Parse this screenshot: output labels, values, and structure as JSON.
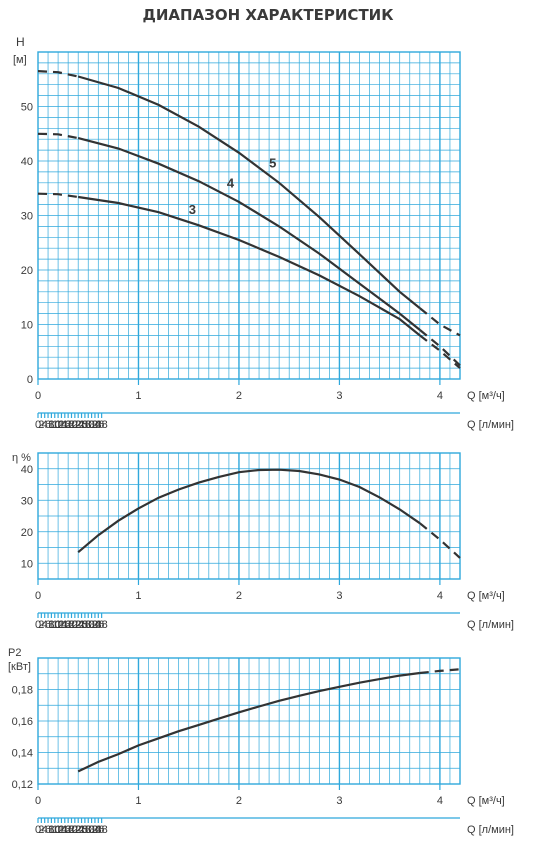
{
  "title": "ДИАПАЗОН ХАРАКТЕРИСТИК",
  "colors": {
    "grid": "#2fa8dc",
    "curve": "#333333",
    "text": "#3a3a3a"
  },
  "chart_data": [
    {
      "type": "line",
      "ylabel": "H",
      "yunit": "[м]",
      "ylim": [
        0,
        60
      ],
      "yticks": [
        "0",
        "10",
        "20",
        "30",
        "40",
        "50"
      ],
      "xlim": [
        0,
        4.2
      ],
      "x_m3h_ticks": [
        "0",
        "1",
        "2",
        "3",
        "4"
      ],
      "x_m3h_label": "Q [м³/ч]",
      "x_lmin_ticks": [
        "0",
        "2",
        "4",
        "6",
        "8",
        "10",
        "12",
        "14",
        "16",
        "18",
        "20",
        "22",
        "24",
        "26",
        "28",
        "30",
        "32",
        "34",
        "36",
        "38"
      ],
      "x_lmin_label": "Q [л/мин]",
      "grid": true,
      "series": [
        {
          "name": "3",
          "x": [
            0,
            0.2,
            0.4,
            0.8,
            1.2,
            1.6,
            2.0,
            2.4,
            2.8,
            3.2,
            3.6,
            3.8,
            4.0,
            4.2
          ],
          "y": [
            34,
            33.9,
            33.4,
            32.3,
            30.6,
            28.2,
            25.5,
            22.4,
            19.0,
            15.2,
            11.0,
            8.0,
            5.2,
            2.0
          ],
          "solid_range": [
            0.4,
            3.8
          ]
        },
        {
          "name": "4",
          "x": [
            0,
            0.2,
            0.4,
            0.8,
            1.2,
            1.6,
            2.0,
            2.4,
            2.8,
            3.2,
            3.6,
            3.8,
            4.0,
            4.2
          ],
          "y": [
            45,
            44.9,
            44.2,
            42.3,
            39.5,
            36.3,
            32.5,
            28.0,
            23.0,
            17.5,
            12.0,
            9.0,
            6.0,
            2.5
          ],
          "solid_range": [
            0.4,
            3.8
          ]
        },
        {
          "name": "5",
          "x": [
            0,
            0.2,
            0.4,
            0.8,
            1.2,
            1.6,
            2.0,
            2.4,
            2.8,
            3.2,
            3.6,
            3.8,
            4.0,
            4.2
          ],
          "y": [
            56.5,
            56.3,
            55.5,
            53.4,
            50.3,
            46.3,
            41.5,
            36.0,
            29.7,
            22.9,
            16.0,
            13.0,
            10.0,
            8.0
          ],
          "solid_range": [
            0.4,
            3.8
          ]
        }
      ]
    },
    {
      "type": "line",
      "ylabel": "η %",
      "ylim": [
        5,
        45
      ],
      "yticks": [
        "10",
        "20",
        "30",
        "40"
      ],
      "xlim": [
        0,
        4.2
      ],
      "x_m3h_ticks": [
        "0",
        "1",
        "2",
        "3",
        "4"
      ],
      "x_m3h_label": "Q [м³/ч]",
      "x_lmin_ticks": [
        "0",
        "2",
        "4",
        "6",
        "8",
        "10",
        "12",
        "14",
        "16",
        "18",
        "20",
        "22",
        "24",
        "26",
        "28",
        "30",
        "32",
        "34",
        "36",
        "38"
      ],
      "x_lmin_label": "Q [л/мин]",
      "grid": true,
      "series": [
        {
          "x": [
            0.4,
            0.6,
            0.8,
            1.0,
            1.2,
            1.4,
            1.6,
            1.8,
            2.0,
            2.2,
            2.4,
            2.6,
            2.8,
            3.0,
            3.2,
            3.4,
            3.6,
            3.8,
            4.0,
            4.2
          ],
          "y": [
            13.5,
            18.9,
            23.5,
            27.4,
            30.8,
            33.4,
            35.6,
            37.4,
            38.9,
            39.6,
            39.7,
            39.3,
            38.2,
            36.6,
            34.2,
            30.9,
            27.1,
            22.7,
            17.5,
            11.7
          ],
          "solid_range": [
            0.4,
            3.8
          ]
        }
      ]
    },
    {
      "type": "line",
      "ylabel": "P2",
      "yunit": "[кВт]",
      "ylim": [
        0.12,
        0.2
      ],
      "yticks": [
        "0,12",
        "0,14",
        "0,16",
        "0,18"
      ],
      "xlim": [
        0,
        4.2
      ],
      "x_m3h_ticks": [
        "0",
        "1",
        "2",
        "3",
        "4"
      ],
      "x_m3h_label": "Q [м³/ч]",
      "x_lmin_ticks": [
        "0",
        "2",
        "4",
        "6",
        "8",
        "10",
        "12",
        "14",
        "16",
        "18",
        "20",
        "22",
        "24",
        "26",
        "28",
        "30",
        "32",
        "34",
        "36",
        "38"
      ],
      "x_lmin_label": "Q [л/мин]",
      "grid": true,
      "series": [
        {
          "x": [
            0.4,
            0.6,
            0.8,
            1.0,
            1.2,
            1.4,
            1.6,
            1.8,
            2.0,
            2.2,
            2.4,
            2.6,
            2.8,
            3.0,
            3.2,
            3.4,
            3.6,
            3.8,
            4.0,
            4.2
          ],
          "y": [
            0.128,
            0.134,
            0.139,
            0.1445,
            0.149,
            0.1535,
            0.1575,
            0.1615,
            0.1655,
            0.1692,
            0.1728,
            0.176,
            0.179,
            0.1817,
            0.1843,
            0.1866,
            0.1888,
            0.1905,
            0.1918,
            0.1928
          ],
          "solid_range": [
            0.4,
            3.8
          ]
        }
      ]
    }
  ]
}
